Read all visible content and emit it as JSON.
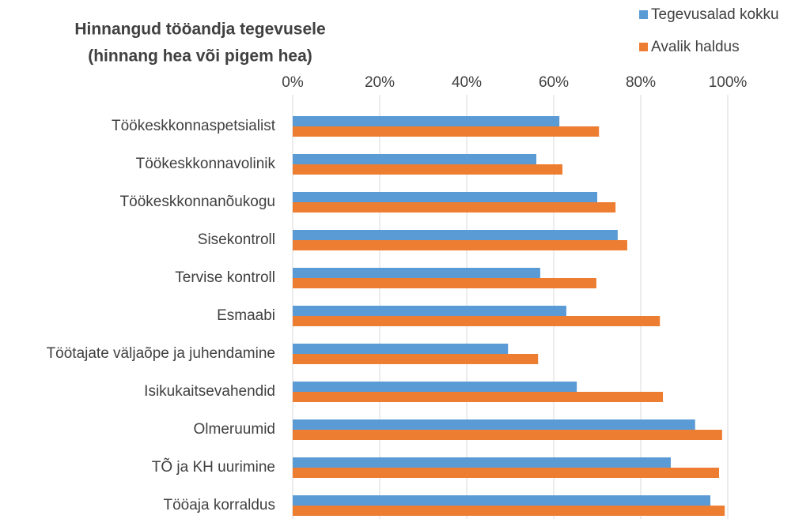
{
  "chart_data": {
    "type": "hbar",
    "title": [
      "Hinnangud tööandja tegevusele",
      "(hinnang hea või pigem hea)"
    ],
    "categories": [
      "Töökeskkonnaspetsialist",
      "Töökeskkonnavolinik",
      "Töökeskkonnanõukogu",
      "Sisekontroll",
      "Tervise kontroll",
      "Esmaabi",
      "Töötajate väljaõpe ja juhendamine",
      "Isikukaitsevahendid",
      "Olmeruumid",
      "TÕ ja KH uurimine",
      "Tööaja korraldus"
    ],
    "series": [
      {
        "name": "Tegevusalad kokku",
        "color": "#5b9bd5",
        "values": [
          61.3,
          56,
          70,
          74.7,
          56.9,
          62.9,
          49.5,
          65.3,
          92.5,
          86.9,
          96
        ]
      },
      {
        "name": "Avalik haldus",
        "color": "#ed7d31",
        "values": [
          70.4,
          62,
          74.2,
          76.9,
          69.8,
          84.4,
          56.4,
          85.1,
          98.7,
          98,
          99.3
        ]
      }
    ],
    "xlim": [
      0,
      100
    ],
    "xticks": [
      {
        "value": 0,
        "label": "0%"
      },
      {
        "value": 20,
        "label": "20%"
      },
      {
        "value": 40,
        "label": "40%"
      },
      {
        "value": 60,
        "label": "60%"
      },
      {
        "value": 80,
        "label": "80%"
      },
      {
        "value": 100,
        "label": "100%"
      }
    ],
    "grid": true,
    "legend": "top-right"
  }
}
